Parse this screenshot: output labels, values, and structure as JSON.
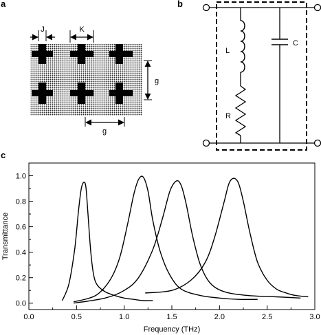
{
  "panels": {
    "a": {
      "label": "a",
      "dim_j": "J",
      "dim_k": "K",
      "dim_g_vertical": "g",
      "dim_g_horizontal": "g"
    },
    "b": {
      "label": "b",
      "inductor": "L",
      "capacitor": "C",
      "resistor": "R"
    },
    "c": {
      "label": "c"
    }
  },
  "chart_data": {
    "type": "line",
    "title": "",
    "xlabel": "Frequency (THz)",
    "ylabel": "Transmittance",
    "xlim": [
      0.0,
      3.0
    ],
    "ylim": [
      -0.05,
      1.1
    ],
    "xticks": [
      "0.0",
      "0.5",
      "1.0",
      "1.5",
      "2.0",
      "2.5",
      "3.0"
    ],
    "yticks": [
      "0.0",
      "0.2",
      "0.4",
      "0.6",
      "0.8",
      "1.0"
    ],
    "grid": false,
    "series": [
      {
        "x": [
          0.35,
          0.42,
          0.48,
          0.52,
          0.55,
          0.58,
          0.6,
          0.62,
          0.65,
          0.68,
          0.72,
          0.8,
          0.9,
          1.0,
          1.1,
          1.2,
          1.3
        ],
        "values": [
          0.02,
          0.15,
          0.42,
          0.72,
          0.9,
          0.95,
          0.9,
          0.7,
          0.4,
          0.22,
          0.14,
          0.09,
          0.06,
          0.04,
          0.03,
          0.02,
          0.02
        ]
      },
      {
        "x": [
          0.47,
          0.7,
          0.85,
          0.95,
          1.03,
          1.1,
          1.15,
          1.2,
          1.25,
          1.3,
          1.38,
          1.48,
          1.6,
          1.8,
          2.0,
          2.2,
          2.4
        ],
        "values": [
          0.01,
          0.06,
          0.18,
          0.35,
          0.6,
          0.85,
          0.97,
          0.99,
          0.88,
          0.65,
          0.4,
          0.22,
          0.11,
          0.06,
          0.04,
          0.03,
          0.03
        ]
      },
      {
        "x": [
          0.47,
          0.8,
          1.0,
          1.15,
          1.3,
          1.4,
          1.48,
          1.55,
          1.6,
          1.65,
          1.72,
          1.8,
          1.9,
          2.05,
          2.3,
          2.6,
          2.85
        ],
        "values": [
          0.0,
          0.04,
          0.1,
          0.2,
          0.42,
          0.66,
          0.88,
          0.96,
          0.92,
          0.78,
          0.52,
          0.3,
          0.16,
          0.09,
          0.06,
          0.05,
          0.04
        ]
      },
      {
        "x": [
          1.22,
          1.5,
          1.7,
          1.85,
          1.95,
          2.05,
          2.1,
          2.15,
          2.2,
          2.25,
          2.32,
          2.4,
          2.5,
          2.6,
          2.7,
          2.8,
          2.93
        ],
        "values": [
          0.08,
          0.1,
          0.18,
          0.32,
          0.52,
          0.8,
          0.94,
          0.98,
          0.94,
          0.8,
          0.55,
          0.32,
          0.18,
          0.11,
          0.08,
          0.06,
          0.05
        ]
      }
    ]
  }
}
